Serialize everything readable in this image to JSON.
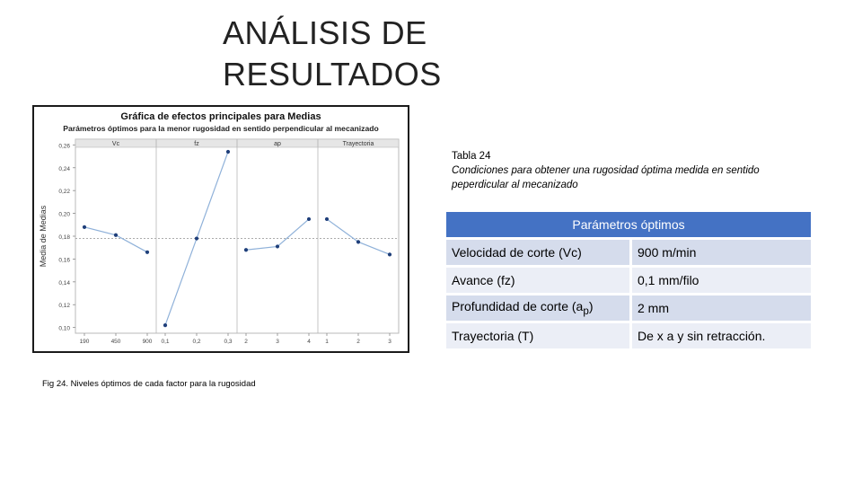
{
  "slide": {
    "title_line1": "ANÁLISIS DE",
    "title_line2": "RESULTADOS"
  },
  "figure_caption": "Fig 24. Niveles óptimos de cada factor para la rugosidad",
  "table": {
    "number": "Tabla 24",
    "description": "Condiciones para obtener una rugosidad óptima medida en sentido peperdicular al mecanizado",
    "header": "Parámetros óptimos",
    "rows": [
      {
        "param": "Velocidad de corte (Vc)",
        "value": "900 m/min"
      },
      {
        "param": "Avance (fz)",
        "value": "0,1 mm/filo"
      },
      {
        "param_prefix": "Profundidad de corte (a",
        "param_sub": "p",
        "param_suffix": ")",
        "value": "2 mm"
      },
      {
        "param": "Trayectoria (T)",
        "value": "De x a y sin retracción."
      }
    ]
  },
  "colors": {
    "table_header": "#4472c4",
    "row_odd": "#d5dcec",
    "row_even": "#ebeef6",
    "series": "#8fb1d9",
    "marker": "#1f3f7a"
  },
  "chart_data": {
    "type": "line",
    "title": "Gráfica de efectos principales para Medias",
    "subtitle": "Parámetros óptimos para la menor rugosidad en sentido perpendicular al mecanizado",
    "ylabel": "Media de Medias",
    "ylim": [
      0.095,
      0.265
    ],
    "yticks": [
      "0,26",
      "0,24",
      "0,22",
      "0,20",
      "0,18",
      "0,16",
      "0,14",
      "0,12",
      "0,10"
    ],
    "ytick_values": [
      0.26,
      0.24,
      0.22,
      0.2,
      0.18,
      0.16,
      0.14,
      0.12,
      0.1
    ],
    "reference_mean": 0.178,
    "grid": false,
    "panels": [
      {
        "name": "Vc",
        "categories": [
          "190",
          "450",
          "900"
        ],
        "values": [
          0.188,
          0.181,
          0.166
        ]
      },
      {
        "name": "fz",
        "categories": [
          "0,1",
          "0,2",
          "0,3"
        ],
        "values": [
          0.102,
          0.178,
          0.254
        ]
      },
      {
        "name": "ap",
        "categories": [
          "2",
          "3",
          "4"
        ],
        "values": [
          0.168,
          0.171,
          0.195
        ]
      },
      {
        "name": "Trayectoria",
        "categories": [
          "1",
          "2",
          "3"
        ],
        "values": [
          0.195,
          0.175,
          0.164
        ]
      }
    ]
  }
}
